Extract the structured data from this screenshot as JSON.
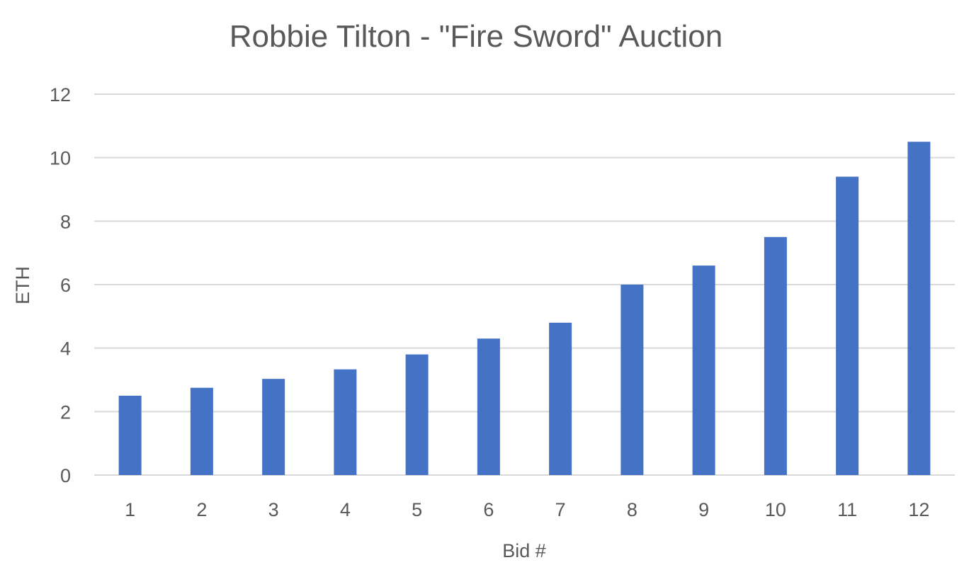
{
  "chart_data": {
    "type": "bar",
    "title": "Robbie Tilton - \"Fire Sword\" Auction",
    "xlabel": "Bid #",
    "ylabel": "ETH",
    "categories": [
      "1",
      "2",
      "3",
      "4",
      "5",
      "6",
      "7",
      "8",
      "9",
      "10",
      "11",
      "12"
    ],
    "series": [
      {
        "values": [
          2.5,
          2.75,
          3.03,
          3.33,
          3.8,
          4.3,
          4.8,
          6.0,
          6.6,
          7.5,
          9.4,
          10.5
        ],
        "color": "#4472c4"
      }
    ],
    "ylim": [
      0,
      12
    ],
    "yticks": [
      "0",
      "2",
      "4",
      "6",
      "8",
      "10",
      "12"
    ],
    "grid": true,
    "legend": "none"
  }
}
